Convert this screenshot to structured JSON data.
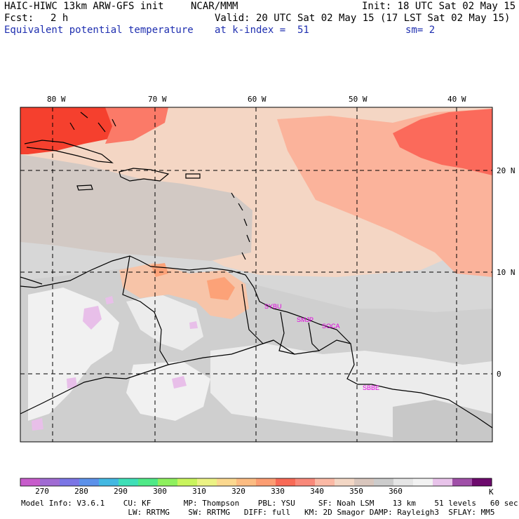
{
  "header": {
    "model": "HAIC-HIWC 13km ARW-GFS init",
    "org": "NCAR/MMM",
    "init": "Init: 18 UTC Sat 02 May 15",
    "fcst_label": "Fcst:",
    "fcst_value": "2 h",
    "valid": "Valid: 20 UTC Sat 02 May 15 (17 LST Sat 02 May 15)",
    "field": "Equivalent potential temperature",
    "level": "at k-index =  51",
    "smoothing": "sm= 2"
  },
  "map": {
    "lon_labels": [
      "80 W",
      "70 W",
      "60 W",
      "50 W",
      "40 W"
    ],
    "lat_labels": [
      "20 N",
      "10 N",
      "0"
    ],
    "stations": [
      "SYBU",
      "SMJP",
      "SOCA",
      "SBBE"
    ],
    "colors": {
      "background": "#d7d7d7",
      "land": "#bebebe",
      "warm_ocean": "#f4d6c4",
      "salmon": "#fbb39b",
      "red": "#fb6a5b",
      "deep_red": "#f5402e",
      "orange": "#fca278",
      "light": "#f1f1f1",
      "lavender": "#e8bfe9",
      "grid": "#000000",
      "station": "#e000e0"
    }
  },
  "colorbar": {
    "colors": [
      "#c75ccb",
      "#a06bd3",
      "#7b75e5",
      "#5c91ea",
      "#43b8e2",
      "#3fdfb7",
      "#4fe987",
      "#8ef05e",
      "#c9f45d",
      "#ecf284",
      "#fbd88f",
      "#fcbc82",
      "#fc9d72",
      "#f86a56",
      "#f9897a",
      "#fbb9a5",
      "#f3d7c5",
      "#d9c6bd",
      "#cccccc",
      "#e6e6e6",
      "#f2f2f2",
      "#e8c3ea",
      "#a04fa8",
      "#6d0a6d"
    ],
    "labels": [
      "270",
      "280",
      "290",
      "300",
      "310",
      "320",
      "330",
      "340",
      "350",
      "360"
    ],
    "unit": "K"
  },
  "model_info": {
    "line1": "Model Info: V3.6.1    CU: KF       MP: Thompson    PBL: YSU     SF: Noah LSM    13 km    51 levels   60 sec",
    "line2": "                       LW: RRTMG    SW: RRTMG   DIFF: full   KM: 2D Smagor DAMP: Rayleigh3  SFLAY: MM5"
  }
}
